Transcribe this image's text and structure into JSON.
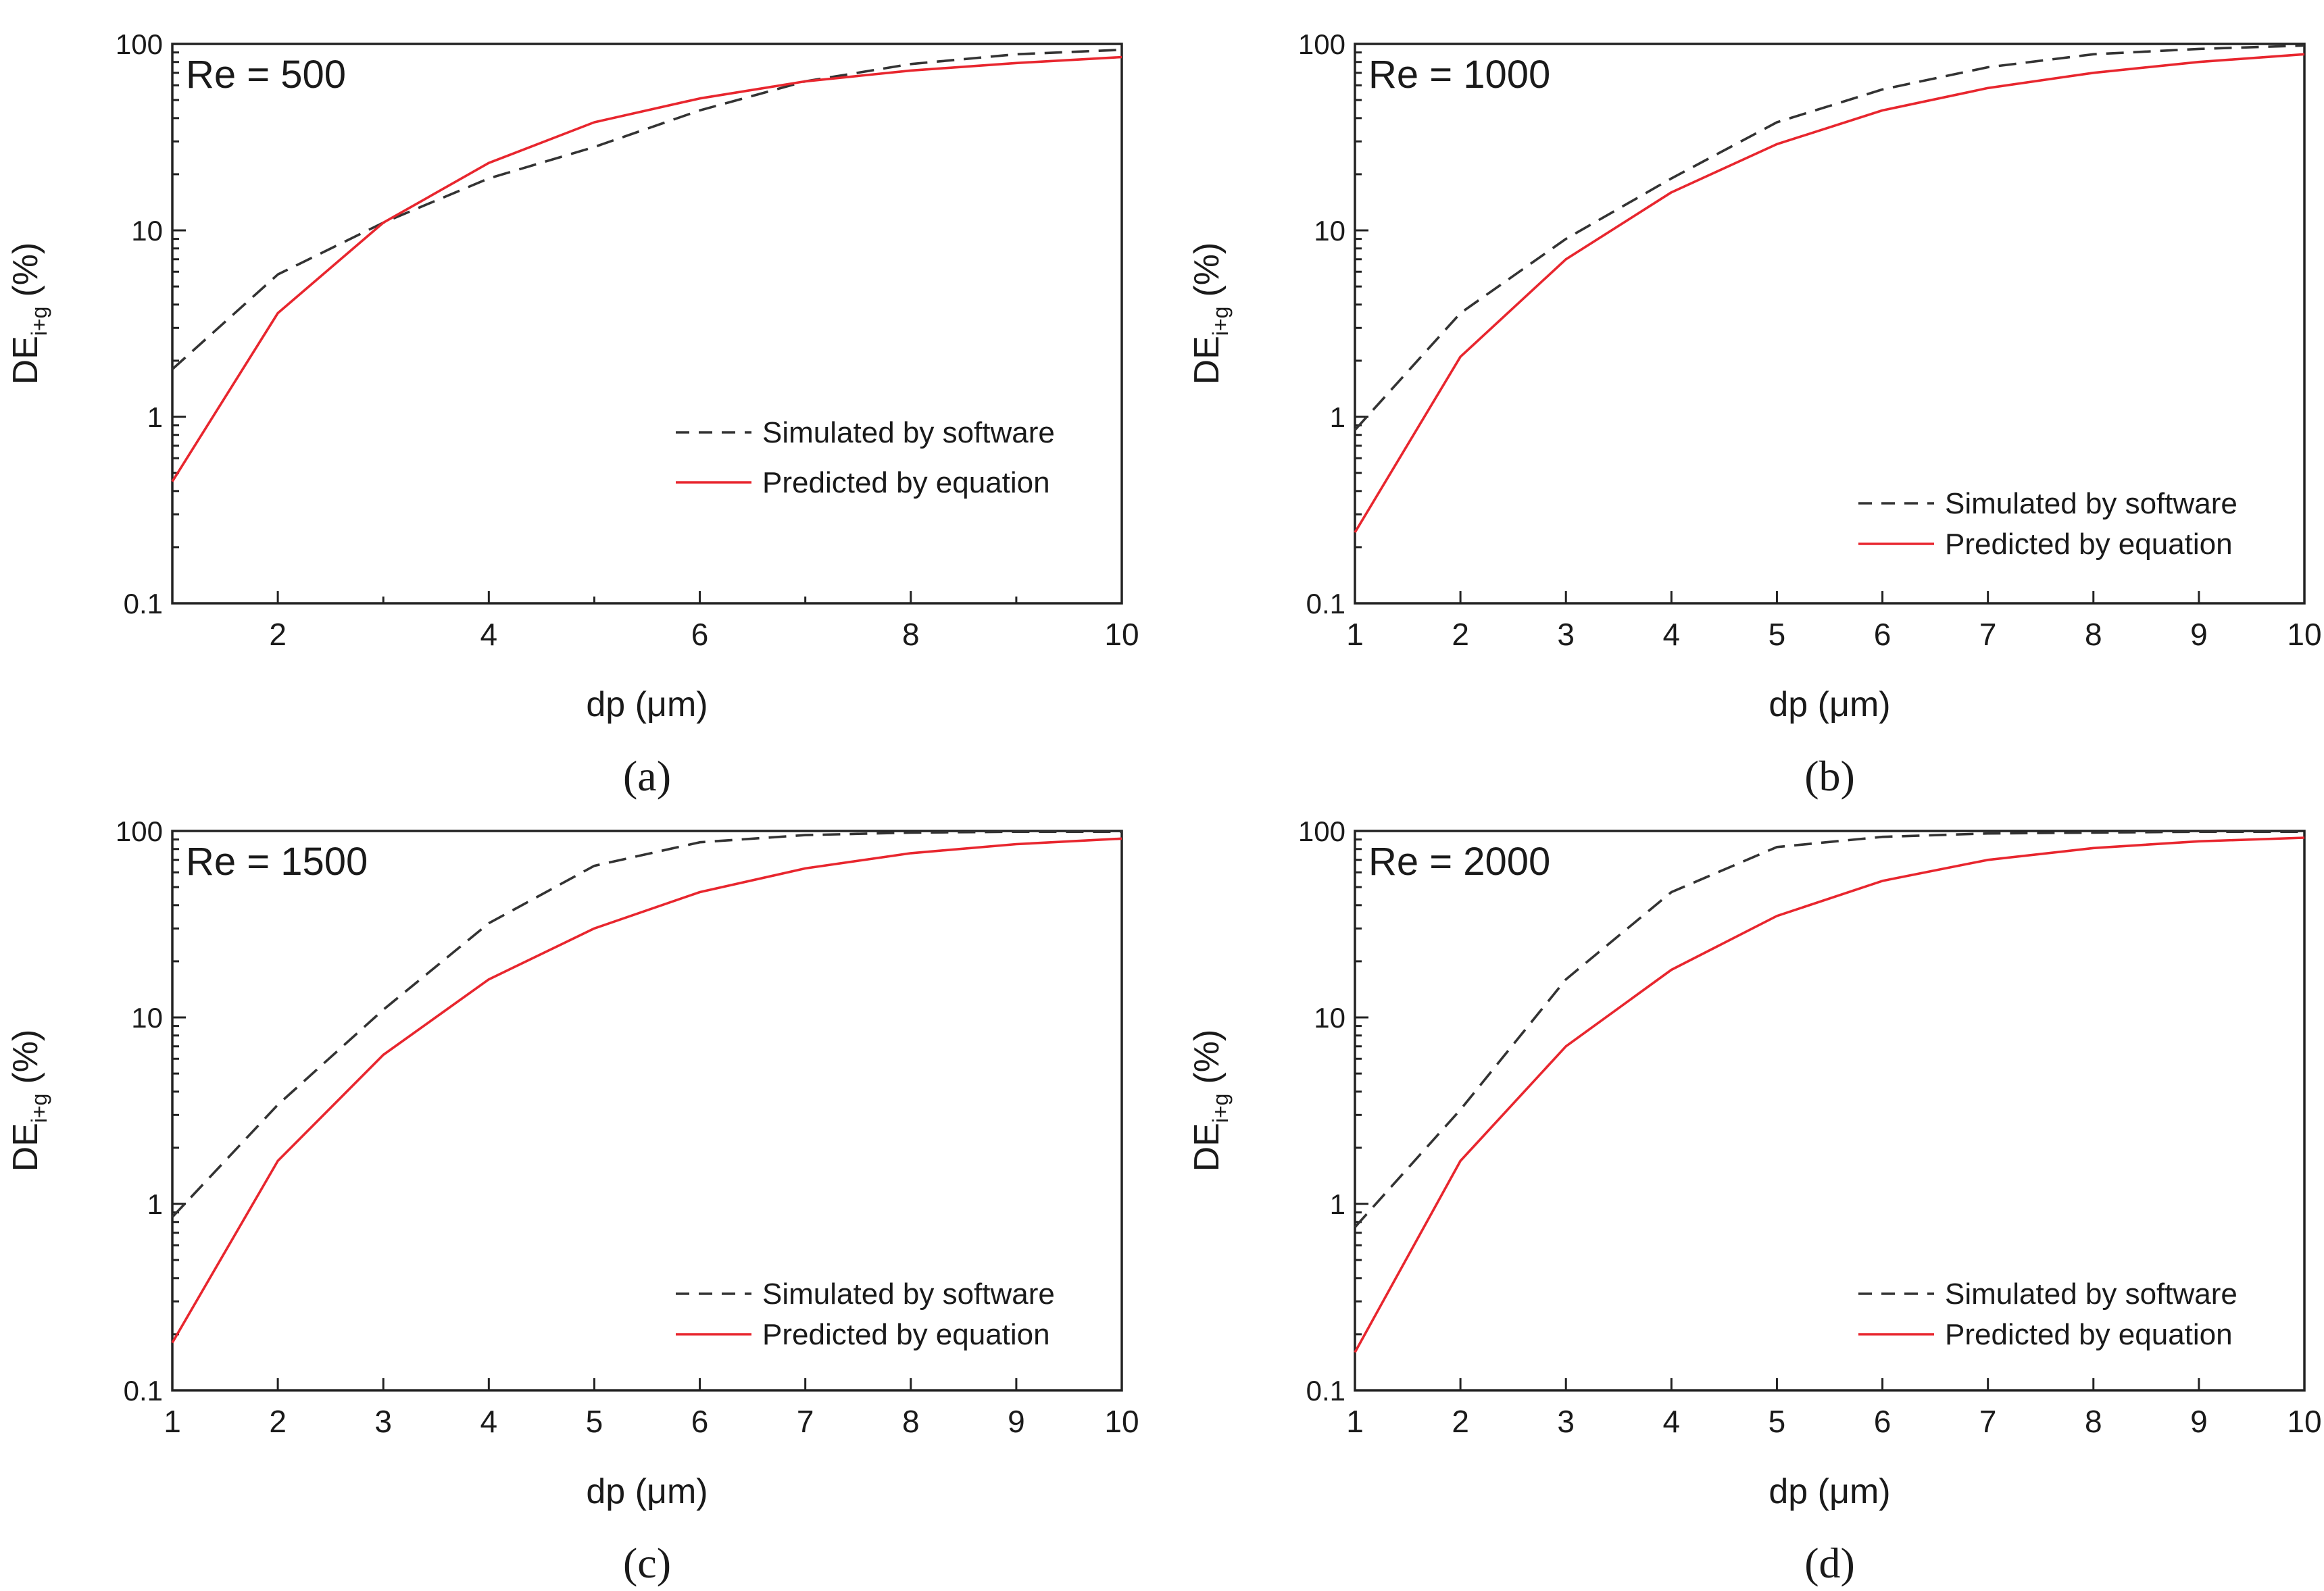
{
  "figure_labels": [
    "(a)",
    "(b)",
    "(c)",
    "(d)"
  ],
  "colors": {
    "simulated": "#333333",
    "predicted": "#e8262e"
  },
  "chart_data": [
    {
      "type": "line",
      "panel": "(a)",
      "annotation": "Re = 500",
      "xlabel": "dp (μm)",
      "ylabel": "DE",
      "ylabel_sub": "i+g",
      "ylabel_unit": "(%)",
      "xlim": [
        1,
        10
      ],
      "ylim": [
        0.1,
        100
      ],
      "yscale": "log",
      "xticks": [
        2,
        4,
        6,
        8,
        10
      ],
      "xminor": [
        1,
        3,
        5,
        7,
        9
      ],
      "yticks": [
        0.1,
        1,
        10,
        100
      ],
      "ytick_labels": [
        "0.1",
        "1",
        "10",
        "100"
      ],
      "legend_position": "middle-right",
      "series": [
        {
          "name": "Simulated by software",
          "style": "dashed",
          "x": [
            1,
            2,
            3,
            4,
            5,
            6,
            7,
            8,
            9,
            10
          ],
          "values": [
            1.8,
            5.8,
            11.0,
            19.0,
            28.0,
            44.0,
            63.0,
            78.0,
            88.0,
            93.0
          ]
        },
        {
          "name": "Predicted by equation",
          "style": "solid",
          "x": [
            1,
            2,
            3,
            4,
            5,
            6,
            7,
            8,
            9,
            10
          ],
          "values": [
            0.45,
            3.6,
            11.0,
            23.0,
            38.0,
            51.0,
            63.0,
            72.0,
            79.0,
            85.0
          ]
        }
      ]
    },
    {
      "type": "line",
      "panel": "(b)",
      "annotation": "Re = 1000",
      "xlabel": "dp (μm)",
      "ylabel": "DE",
      "ylabel_sub": "i+g",
      "ylabel_unit": "(%)",
      "xlim": [
        1,
        10
      ],
      "ylim": [
        0.1,
        100
      ],
      "yscale": "log",
      "xticks": [
        1,
        2,
        3,
        4,
        5,
        6,
        7,
        8,
        9,
        10
      ],
      "xminor": [],
      "yticks": [
        0.1,
        1,
        10,
        100
      ],
      "ytick_labels": [
        "0.1",
        "1",
        "10",
        "100"
      ],
      "legend_position": "lower-right",
      "series": [
        {
          "name": "Simulated by software",
          "style": "dashed",
          "x": [
            1,
            2,
            3,
            4,
            5,
            6,
            7,
            8,
            9,
            10
          ],
          "values": [
            0.85,
            3.6,
            9.0,
            19.0,
            38.0,
            57.0,
            75.0,
            88.0,
            94.0,
            98.0
          ]
        },
        {
          "name": "Predicted by equation",
          "style": "solid",
          "x": [
            1,
            2,
            3,
            4,
            5,
            6,
            7,
            8,
            9,
            10
          ],
          "values": [
            0.24,
            2.1,
            7.0,
            16.0,
            29.0,
            44.0,
            58.0,
            70.0,
            80.0,
            88.0
          ]
        }
      ]
    },
    {
      "type": "line",
      "panel": "(c)",
      "annotation": "Re = 1500",
      "xlabel": "dp (μm)",
      "ylabel": "DE",
      "ylabel_sub": "i+g",
      "ylabel_unit": "(%)",
      "xlim": [
        1,
        10
      ],
      "ylim": [
        0.1,
        100
      ],
      "yscale": "log",
      "xticks": [
        1,
        2,
        3,
        4,
        5,
        6,
        7,
        8,
        9,
        10
      ],
      "xminor": [],
      "yticks": [
        0.1,
        1,
        10,
        100
      ],
      "ytick_labels": [
        "0.1",
        "1",
        "10",
        "100"
      ],
      "legend_position": "lower-right",
      "series": [
        {
          "name": "Simulated by software",
          "style": "dashed",
          "x": [
            1,
            2,
            3,
            4,
            5,
            6,
            7,
            8,
            9,
            10
          ],
          "values": [
            0.85,
            3.4,
            11.0,
            32.0,
            65.0,
            87.0,
            95.0,
            98.0,
            99.0,
            99.0
          ]
        },
        {
          "name": "Predicted by equation",
          "style": "solid",
          "x": [
            1,
            2,
            3,
            4,
            5,
            6,
            7,
            8,
            9,
            10
          ],
          "values": [
            0.18,
            1.7,
            6.3,
            16.0,
            30.0,
            47.0,
            63.0,
            76.0,
            85.0,
            91.0
          ]
        }
      ]
    },
    {
      "type": "line",
      "panel": "(d)",
      "annotation": "Re = 2000",
      "xlabel": "dp (μm)",
      "ylabel": "DE",
      "ylabel_sub": "i+g",
      "ylabel_unit": "(%)",
      "xlim": [
        1,
        10
      ],
      "ylim": [
        0.1,
        100
      ],
      "yscale": "log",
      "xticks": [
        1,
        2,
        3,
        4,
        5,
        6,
        7,
        8,
        9,
        10
      ],
      "xminor": [],
      "yticks": [
        0.1,
        1,
        10,
        100
      ],
      "ytick_labels": [
        "0.1",
        "1",
        "10",
        "100"
      ],
      "legend_position": "lower-right",
      "series": [
        {
          "name": "Simulated by software",
          "style": "dashed",
          "x": [
            1,
            2,
            3,
            4,
            5,
            6,
            7,
            8,
            9,
            10
          ],
          "values": [
            0.75,
            3.2,
            16.0,
            47.0,
            82.0,
            93.0,
            97.0,
            98.0,
            99.0,
            99.0
          ]
        },
        {
          "name": "Predicted by equation",
          "style": "solid",
          "x": [
            1,
            2,
            3,
            4,
            5,
            6,
            7,
            8,
            9,
            10
          ],
          "values": [
            0.16,
            1.7,
            7.0,
            18.0,
            35.0,
            54.0,
            70.0,
            81.0,
            88.0,
            92.0
          ]
        }
      ]
    }
  ]
}
